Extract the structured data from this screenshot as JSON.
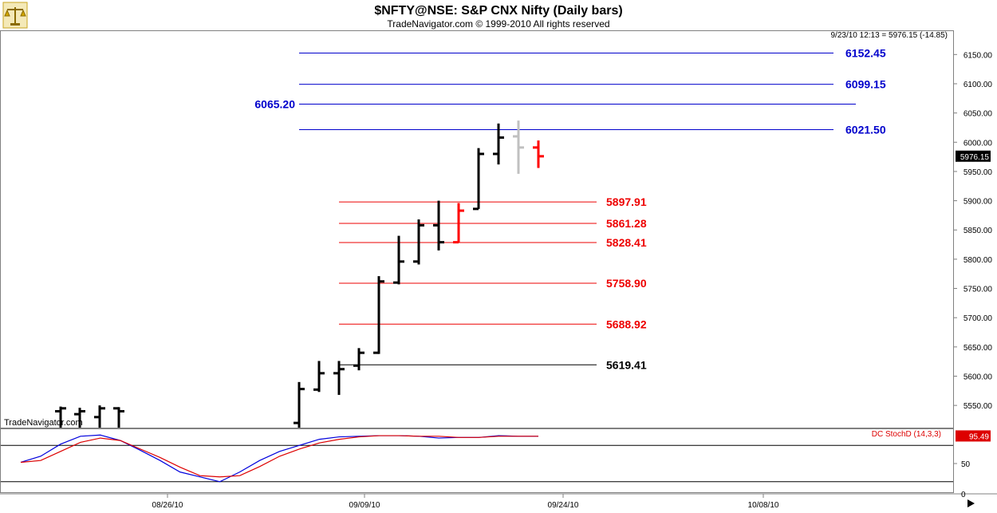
{
  "header": {
    "title": "$NFTY@NSE:  S&P CNX Nifty  (Daily bars)",
    "copyright": "TradeNavigator.com © 1999-2010 All rights reserved",
    "last_quote": "9/23/10 12:13 = 5976.15 (-14.85)",
    "watermark": "TradeNavigator.com",
    "logo_icon": "scales-icon"
  },
  "chart_data": [
    {
      "type": "bar",
      "title": "$NFTY@NSE:  S&P CNX Nifty  (Daily bars)",
      "ylim": [
        5512,
        6190
      ],
      "y_ticks": [
        "6150.00",
        "6100.00",
        "6050.00",
        "6000.00",
        "5950.00",
        "5900.00",
        "5850.00",
        "5800.00",
        "5750.00",
        "5700.00",
        "5650.00",
        "5600.00",
        "5550.00"
      ],
      "x_tick_labels": [
        "08/26/10",
        "09/09/10",
        "09/24/10",
        "10/08/10"
      ],
      "current_price_label": "5976.15",
      "ohlc_bars": [
        {
          "open": 5540,
          "high": 5548,
          "low": 5512,
          "close": 5545,
          "color": "#000000"
        },
        {
          "open": 5535,
          "high": 5546,
          "low": 5512,
          "close": 5540,
          "color": "#000000"
        },
        {
          "open": 5530,
          "high": 5550,
          "low": 5512,
          "close": 5545,
          "color": "#000000"
        },
        {
          "open": 5545,
          "high": 5547,
          "low": 5512,
          "close": 5540,
          "color": "#000000"
        },
        {
          "open": 5520,
          "high": 5590,
          "low": 5512,
          "close": 5578,
          "color": "#000000"
        },
        {
          "open": 5577,
          "high": 5626,
          "low": 5573,
          "close": 5605,
          "color": "#000000"
        },
        {
          "open": 5605,
          "high": 5626,
          "low": 5568,
          "close": 5612,
          "color": "#000000"
        },
        {
          "open": 5618,
          "high": 5648,
          "low": 5610,
          "close": 5640,
          "color": "#000000"
        },
        {
          "open": 5640,
          "high": 5771,
          "low": 5638,
          "close": 5762,
          "color": "#000000"
        },
        {
          "open": 5760,
          "high": 5840,
          "low": 5757,
          "close": 5796,
          "color": "#000000"
        },
        {
          "open": 5796,
          "high": 5868,
          "low": 5791,
          "close": 5858,
          "color": "#000000"
        },
        {
          "open": 5858,
          "high": 5900,
          "low": 5815,
          "close": 5829,
          "color": "#000000"
        },
        {
          "open": 5829,
          "high": 5896,
          "low": 5829,
          "close": 5883,
          "color": "#ff0000"
        },
        {
          "open": 5886,
          "high": 5990,
          "low": 5886,
          "close": 5980,
          "color": "#000000"
        },
        {
          "open": 5980,
          "high": 6032,
          "low": 5962,
          "close": 6008,
          "color": "#000000"
        },
        {
          "open": 6010,
          "high": 6037,
          "low": 5946,
          "close": 5991,
          "color": "#c0c0c0"
        },
        {
          "open": 5991,
          "high": 6003,
          "low": 5956,
          "close": 5976,
          "color": "#ff0000"
        }
      ],
      "levels": [
        {
          "value": 6152.45,
          "label": "6152.45",
          "color": "#0000cc"
        },
        {
          "value": 6099.15,
          "label": "6099.15",
          "color": "#0000cc"
        },
        {
          "value": 6065.2,
          "label": "6065.20",
          "color": "#0000cc"
        },
        {
          "value": 6021.5,
          "label": "6021.50",
          "color": "#0000cc"
        },
        {
          "value": 5897.91,
          "label": "5897.91",
          "color": "#ee0000"
        },
        {
          "value": 5861.28,
          "label": "5861.28",
          "color": "#ee0000"
        },
        {
          "value": 5828.41,
          "label": "5828.41",
          "color": "#ee0000"
        },
        {
          "value": 5758.9,
          "label": "5758.90",
          "color": "#ee0000"
        },
        {
          "value": 5688.92,
          "label": "5688.92",
          "color": "#ee0000"
        },
        {
          "value": 5619.41,
          "label": "5619.41",
          "color": "#000000"
        }
      ]
    },
    {
      "type": "line",
      "title": "DC StochD (14,3,3)",
      "ylim": [
        0,
        100
      ],
      "y_ticks": [
        "50",
        "0"
      ],
      "reference_lines": [
        80,
        20
      ],
      "current_value_label": "95.49",
      "x": [
        0,
        1,
        2,
        3,
        4,
        5,
        6,
        7,
        8,
        9,
        10,
        11,
        12,
        13,
        14,
        15,
        16,
        17,
        18,
        19,
        20,
        21,
        22,
        23,
        24,
        25,
        26
      ],
      "series": [
        {
          "color": "#0000dd",
          "values": [
            52,
            62,
            82,
            95,
            97,
            88,
            72,
            55,
            36,
            28,
            20,
            36,
            55,
            70,
            80,
            90,
            94,
            95,
            96,
            96,
            95,
            92,
            93,
            93,
            96,
            95,
            95
          ]
        },
        {
          "color": "#dd0000",
          "values": [
            52,
            55,
            70,
            85,
            92,
            88,
            74,
            60,
            44,
            30,
            28,
            30,
            45,
            62,
            74,
            84,
            90,
            94,
            96,
            96,
            95,
            95,
            93,
            93,
            95,
            95,
            95
          ]
        }
      ]
    }
  ]
}
